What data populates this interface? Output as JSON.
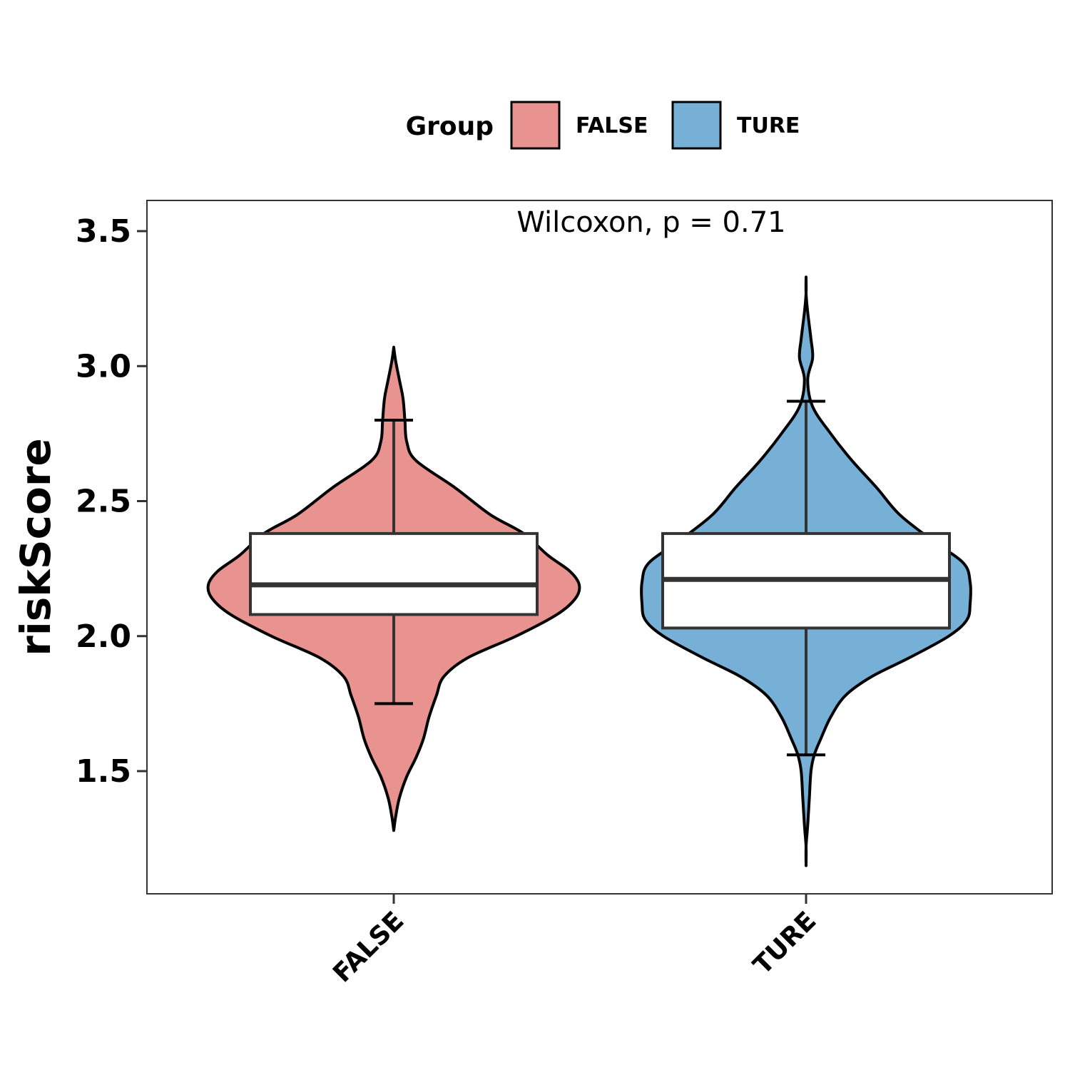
{
  "chart_data": {
    "type": "violin",
    "title": "",
    "xlabel": "",
    "ylabel": "riskScore",
    "ylim": [
      1.05,
      3.62
    ],
    "yticks": [
      "1.5",
      "2.0",
      "2.5",
      "3.0",
      "3.5"
    ],
    "categories": [
      "FALSE",
      "TURE"
    ],
    "legend": {
      "title": "Group",
      "position": "top",
      "entries": [
        "FALSE",
        "TURE"
      ]
    },
    "annotation": "Wilcoxon, p = 0.71",
    "grid": false,
    "series": [
      {
        "name": "FALSE",
        "color": "#E8938F",
        "boxplot": {
          "whisker_low": 1.75,
          "q1": 2.08,
          "median": 2.19,
          "q3": 2.38,
          "whisker_high": 2.8
        },
        "violin_range": [
          1.28,
          3.07
        ],
        "density": [
          [
            1.28,
            0.0
          ],
          [
            1.33,
            0.01
          ],
          [
            1.4,
            0.03
          ],
          [
            1.48,
            0.07
          ],
          [
            1.55,
            0.12
          ],
          [
            1.62,
            0.16
          ],
          [
            1.7,
            0.19
          ],
          [
            1.78,
            0.23
          ],
          [
            1.85,
            0.27
          ],
          [
            1.92,
            0.4
          ],
          [
            2.0,
            0.66
          ],
          [
            2.08,
            0.88
          ],
          [
            2.14,
            0.98
          ],
          [
            2.19,
            1.0
          ],
          [
            2.24,
            0.95
          ],
          [
            2.3,
            0.83
          ],
          [
            2.38,
            0.7
          ],
          [
            2.45,
            0.52
          ],
          [
            2.55,
            0.33
          ],
          [
            2.65,
            0.12
          ],
          [
            2.72,
            0.07
          ],
          [
            2.8,
            0.06
          ],
          [
            2.88,
            0.05
          ],
          [
            2.95,
            0.03
          ],
          [
            3.02,
            0.01
          ],
          [
            3.07,
            0.0
          ]
        ]
      },
      {
        "name": "TURE",
        "color": "#76B0D6",
        "boxplot": {
          "whisker_low": 1.56,
          "q1": 2.03,
          "median": 2.21,
          "q3": 2.38,
          "whisker_high": 2.87
        },
        "violin_range": [
          1.15,
          3.33
        ],
        "density": [
          [
            1.15,
            0.0
          ],
          [
            1.22,
            0.0
          ],
          [
            1.3,
            0.01
          ],
          [
            1.4,
            0.02
          ],
          [
            1.5,
            0.03
          ],
          [
            1.56,
            0.05
          ],
          [
            1.62,
            0.09
          ],
          [
            1.7,
            0.15
          ],
          [
            1.78,
            0.24
          ],
          [
            1.85,
            0.4
          ],
          [
            1.92,
            0.63
          ],
          [
            2.0,
            0.87
          ],
          [
            2.06,
            0.98
          ],
          [
            2.12,
            1.0
          ],
          [
            2.2,
            1.0
          ],
          [
            2.27,
            0.96
          ],
          [
            2.35,
            0.78
          ],
          [
            2.45,
            0.57
          ],
          [
            2.55,
            0.43
          ],
          [
            2.65,
            0.28
          ],
          [
            2.75,
            0.15
          ],
          [
            2.85,
            0.04
          ],
          [
            2.95,
            0.01
          ],
          [
            3.03,
            0.04
          ],
          [
            3.1,
            0.03
          ],
          [
            3.2,
            0.01
          ],
          [
            3.27,
            0.0
          ],
          [
            3.33,
            0.0
          ]
        ]
      }
    ]
  }
}
